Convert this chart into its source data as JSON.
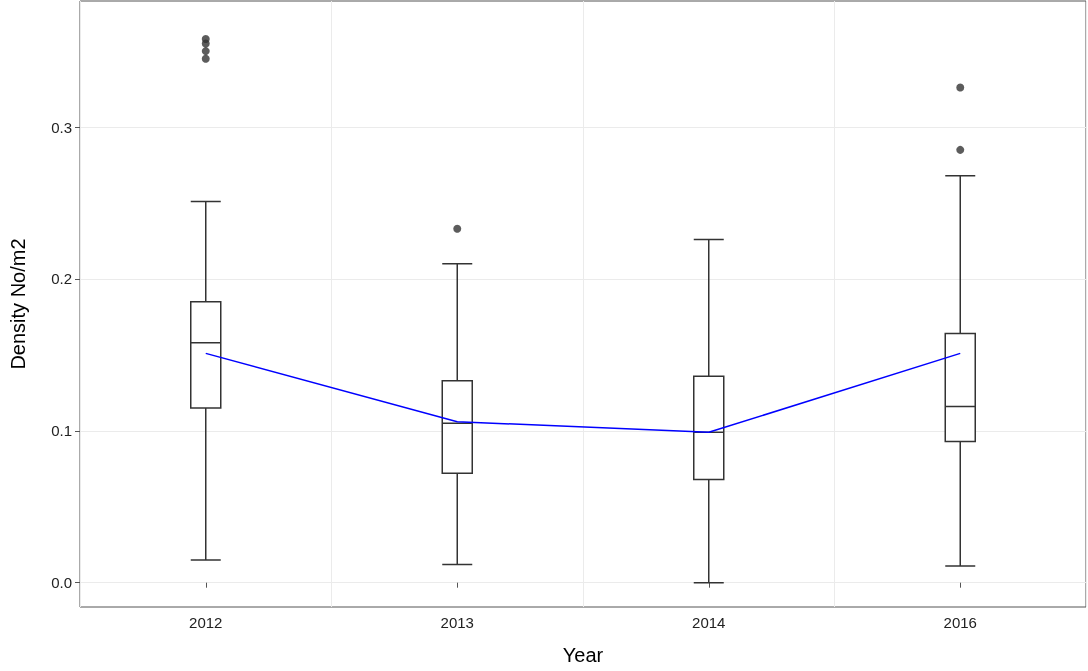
{
  "chart_data": {
    "type": "box",
    "xlabel": "Year",
    "ylabel": "Density No/m2",
    "categories": [
      "2012",
      "2013",
      "2014",
      "2016"
    ],
    "ylim": [
      -0.016,
      0.383
    ],
    "yticks": [
      {
        "value": 0,
        "label": "0.0"
      },
      {
        "value": 0.1,
        "label": "0.1"
      },
      {
        "value": 0.2,
        "label": "0.2"
      },
      {
        "value": 0.3,
        "label": "0.3"
      }
    ],
    "grid": true,
    "series": [
      {
        "color": "#333333",
        "boxes": [
          {
            "low": 0.015,
            "q1": 0.115,
            "median": 0.158,
            "q3": 0.185,
            "high": 0.251,
            "outliers": [
              0.345,
              0.35,
              0.355,
              0.358
            ]
          },
          {
            "low": 0.012,
            "q1": 0.072,
            "median": 0.105,
            "q3": 0.133,
            "high": 0.21,
            "outliers": [
              0.233
            ]
          },
          {
            "low": 0.0,
            "q1": 0.068,
            "median": 0.099,
            "q3": 0.136,
            "high": 0.226
          },
          {
            "low": 0.011,
            "q1": 0.093,
            "median": 0.116,
            "q3": 0.164,
            "high": 0.268,
            "outliers": [
              0.285,
              0.326
            ]
          }
        ]
      },
      {
        "type": "line",
        "color": "#0000ff",
        "marker": "none",
        "values": [
          0.151,
          0.106,
          0.099,
          0.151
        ]
      }
    ]
  }
}
